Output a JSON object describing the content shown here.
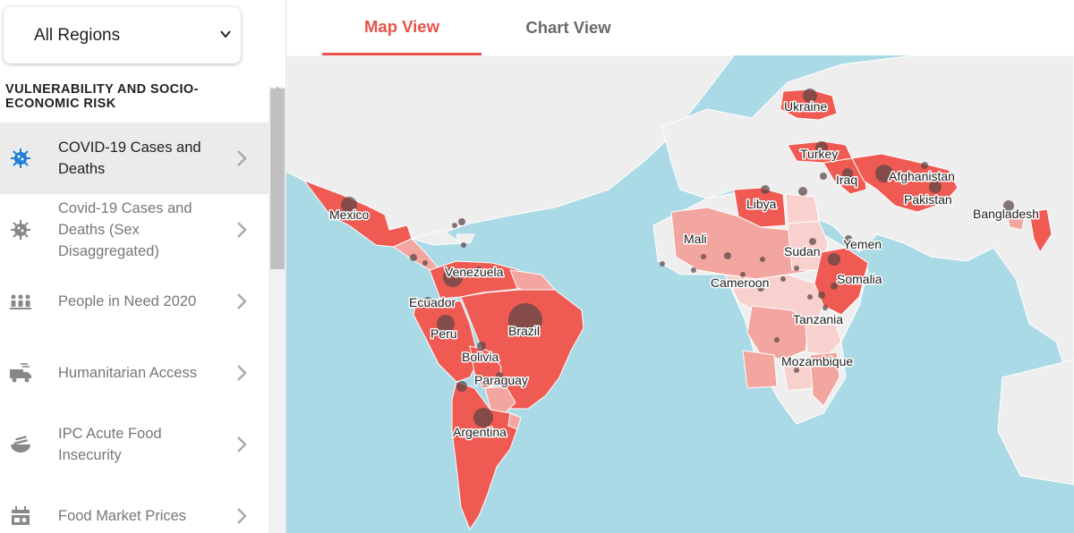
{
  "region_select": {
    "value": "All Regions",
    "icon": "chevron-down-icon"
  },
  "sidebar": {
    "section_title": "VULNERABILITY AND SOCIO-ECONOMIC RISK",
    "items": [
      {
        "label": "COVID-19 Cases and Deaths",
        "icon": "virus-icon",
        "active": true
      },
      {
        "label": "Covid-19 Cases and Deaths (Sex Disaggregated)",
        "icon": "virus-icon",
        "active": false
      },
      {
        "label": "People in Need 2020",
        "icon": "people-icon",
        "active": false
      },
      {
        "label": "Humanitarian Access",
        "icon": "truck-icon",
        "active": false
      },
      {
        "label": "IPC Acute Food Insecurity",
        "icon": "food-bowl-icon",
        "active": false
      },
      {
        "label": "Food Market Prices",
        "icon": "market-icon",
        "active": false
      }
    ]
  },
  "tabs": [
    {
      "label": "Map View",
      "active": true
    },
    {
      "label": "Chart View",
      "active": false
    }
  ],
  "map": {
    "country_labels": [
      "Ukraine",
      "Turkey",
      "Iraq",
      "Afghanistan",
      "Pakistan",
      "Bangladesh",
      "Libya",
      "Mexico",
      "Mali",
      "Yemen",
      "Sudan",
      "Somalia",
      "Cameroon",
      "Venezuela",
      "Ecuador",
      "Peru",
      "Brazil",
      "Tanzania",
      "Bolivia",
      "Paraguay",
      "Mozambique",
      "Argentina"
    ]
  },
  "colors": {
    "accent": "#e8524a",
    "water": "#aadae6",
    "land": "#eeeeee",
    "high": "#ef5b52",
    "mid": "#f3a5a0",
    "low": "#f8d0cd",
    "bubble": "#5a4545",
    "active_icon": "#1e7fd6"
  }
}
